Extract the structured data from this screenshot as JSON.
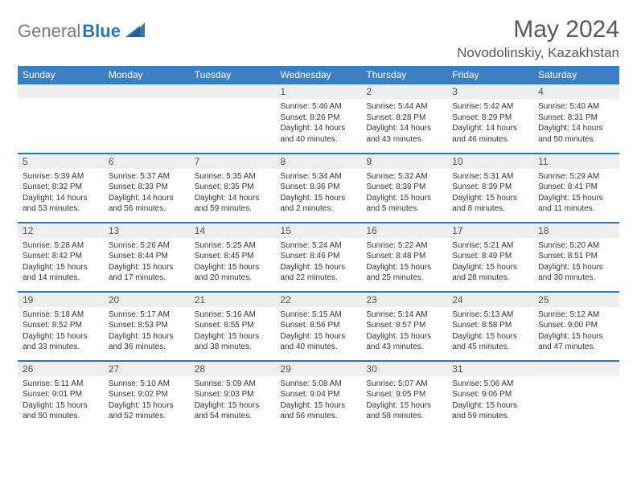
{
  "brand": {
    "first": "General",
    "second": "Blue"
  },
  "title": "May 2024",
  "location": "Novodolinskiy, Kazakhstan",
  "weekday_headers": [
    "Sunday",
    "Monday",
    "Tuesday",
    "Wednesday",
    "Thursday",
    "Friday",
    "Saturday"
  ],
  "colors": {
    "header_bg": "#3a80c3",
    "header_text": "#ffffff",
    "daynum_bg": "#eceef0",
    "rule": "#2b74b8",
    "title_text": "#595959"
  },
  "weeks": [
    [
      null,
      null,
      null,
      {
        "n": "1",
        "sunrise": "Sunrise: 5:46 AM",
        "sunset": "Sunset: 8:26 PM",
        "day1": "Daylight: 14 hours",
        "day2": "and 40 minutes."
      },
      {
        "n": "2",
        "sunrise": "Sunrise: 5:44 AM",
        "sunset": "Sunset: 8:28 PM",
        "day1": "Daylight: 14 hours",
        "day2": "and 43 minutes."
      },
      {
        "n": "3",
        "sunrise": "Sunrise: 5:42 AM",
        "sunset": "Sunset: 8:29 PM",
        "day1": "Daylight: 14 hours",
        "day2": "and 46 minutes."
      },
      {
        "n": "4",
        "sunrise": "Sunrise: 5:40 AM",
        "sunset": "Sunset: 8:31 PM",
        "day1": "Daylight: 14 hours",
        "day2": "and 50 minutes."
      }
    ],
    [
      {
        "n": "5",
        "sunrise": "Sunrise: 5:39 AM",
        "sunset": "Sunset: 8:32 PM",
        "day1": "Daylight: 14 hours",
        "day2": "and 53 minutes."
      },
      {
        "n": "6",
        "sunrise": "Sunrise: 5:37 AM",
        "sunset": "Sunset: 8:33 PM",
        "day1": "Daylight: 14 hours",
        "day2": "and 56 minutes."
      },
      {
        "n": "7",
        "sunrise": "Sunrise: 5:35 AM",
        "sunset": "Sunset: 8:35 PM",
        "day1": "Daylight: 14 hours",
        "day2": "and 59 minutes."
      },
      {
        "n": "8",
        "sunrise": "Sunrise: 5:34 AM",
        "sunset": "Sunset: 8:36 PM",
        "day1": "Daylight: 15 hours",
        "day2": "and 2 minutes."
      },
      {
        "n": "9",
        "sunrise": "Sunrise: 5:32 AM",
        "sunset": "Sunset: 8:38 PM",
        "day1": "Daylight: 15 hours",
        "day2": "and 5 minutes."
      },
      {
        "n": "10",
        "sunrise": "Sunrise: 5:31 AM",
        "sunset": "Sunset: 8:39 PM",
        "day1": "Daylight: 15 hours",
        "day2": "and 8 minutes."
      },
      {
        "n": "11",
        "sunrise": "Sunrise: 5:29 AM",
        "sunset": "Sunset: 8:41 PM",
        "day1": "Daylight: 15 hours",
        "day2": "and 11 minutes."
      }
    ],
    [
      {
        "n": "12",
        "sunrise": "Sunrise: 5:28 AM",
        "sunset": "Sunset: 8:42 PM",
        "day1": "Daylight: 15 hours",
        "day2": "and 14 minutes."
      },
      {
        "n": "13",
        "sunrise": "Sunrise: 5:26 AM",
        "sunset": "Sunset: 8:44 PM",
        "day1": "Daylight: 15 hours",
        "day2": "and 17 minutes."
      },
      {
        "n": "14",
        "sunrise": "Sunrise: 5:25 AM",
        "sunset": "Sunset: 8:45 PM",
        "day1": "Daylight: 15 hours",
        "day2": "and 20 minutes."
      },
      {
        "n": "15",
        "sunrise": "Sunrise: 5:24 AM",
        "sunset": "Sunset: 8:46 PM",
        "day1": "Daylight: 15 hours",
        "day2": "and 22 minutes."
      },
      {
        "n": "16",
        "sunrise": "Sunrise: 5:22 AM",
        "sunset": "Sunset: 8:48 PM",
        "day1": "Daylight: 15 hours",
        "day2": "and 25 minutes."
      },
      {
        "n": "17",
        "sunrise": "Sunrise: 5:21 AM",
        "sunset": "Sunset: 8:49 PM",
        "day1": "Daylight: 15 hours",
        "day2": "and 28 minutes."
      },
      {
        "n": "18",
        "sunrise": "Sunrise: 5:20 AM",
        "sunset": "Sunset: 8:51 PM",
        "day1": "Daylight: 15 hours",
        "day2": "and 30 minutes."
      }
    ],
    [
      {
        "n": "19",
        "sunrise": "Sunrise: 5:18 AM",
        "sunset": "Sunset: 8:52 PM",
        "day1": "Daylight: 15 hours",
        "day2": "and 33 minutes."
      },
      {
        "n": "20",
        "sunrise": "Sunrise: 5:17 AM",
        "sunset": "Sunset: 8:53 PM",
        "day1": "Daylight: 15 hours",
        "day2": "and 36 minutes."
      },
      {
        "n": "21",
        "sunrise": "Sunrise: 5:16 AM",
        "sunset": "Sunset: 8:55 PM",
        "day1": "Daylight: 15 hours",
        "day2": "and 38 minutes."
      },
      {
        "n": "22",
        "sunrise": "Sunrise: 5:15 AM",
        "sunset": "Sunset: 8:56 PM",
        "day1": "Daylight: 15 hours",
        "day2": "and 40 minutes."
      },
      {
        "n": "23",
        "sunrise": "Sunrise: 5:14 AM",
        "sunset": "Sunset: 8:57 PM",
        "day1": "Daylight: 15 hours",
        "day2": "and 43 minutes."
      },
      {
        "n": "24",
        "sunrise": "Sunrise: 5:13 AM",
        "sunset": "Sunset: 8:58 PM",
        "day1": "Daylight: 15 hours",
        "day2": "and 45 minutes."
      },
      {
        "n": "25",
        "sunrise": "Sunrise: 5:12 AM",
        "sunset": "Sunset: 9:00 PM",
        "day1": "Daylight: 15 hours",
        "day2": "and 47 minutes."
      }
    ],
    [
      {
        "n": "26",
        "sunrise": "Sunrise: 5:11 AM",
        "sunset": "Sunset: 9:01 PM",
        "day1": "Daylight: 15 hours",
        "day2": "and 50 minutes."
      },
      {
        "n": "27",
        "sunrise": "Sunrise: 5:10 AM",
        "sunset": "Sunset: 9:02 PM",
        "day1": "Daylight: 15 hours",
        "day2": "and 52 minutes."
      },
      {
        "n": "28",
        "sunrise": "Sunrise: 5:09 AM",
        "sunset": "Sunset: 9:03 PM",
        "day1": "Daylight: 15 hours",
        "day2": "and 54 minutes."
      },
      {
        "n": "29",
        "sunrise": "Sunrise: 5:08 AM",
        "sunset": "Sunset: 9:04 PM",
        "day1": "Daylight: 15 hours",
        "day2": "and 56 minutes."
      },
      {
        "n": "30",
        "sunrise": "Sunrise: 5:07 AM",
        "sunset": "Sunset: 9:05 PM",
        "day1": "Daylight: 15 hours",
        "day2": "and 58 minutes."
      },
      {
        "n": "31",
        "sunrise": "Sunrise: 5:06 AM",
        "sunset": "Sunset: 9:06 PM",
        "day1": "Daylight: 15 hours",
        "day2": "and 59 minutes."
      },
      null
    ]
  ]
}
